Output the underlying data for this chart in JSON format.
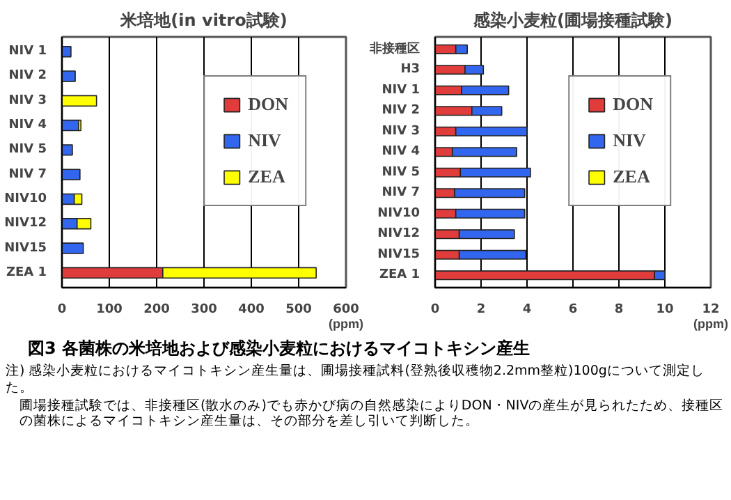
{
  "chart_data": [
    {
      "type": "bar",
      "orientation": "horizontal",
      "stacked": true,
      "title": "米培地(in vitro試験)",
      "xlabel": "(ppm)",
      "categories": [
        "NIV 1",
        "NIV 2",
        "NIV 3",
        "NIV 4",
        "NIV 5",
        "NIV 7",
        "NIV10",
        "NIV12",
        "NIV15",
        "ZEA 1"
      ],
      "series": [
        {
          "name": "DON",
          "color": "#e03c3c",
          "values": [
            null,
            null,
            null,
            null,
            null,
            null,
            null,
            null,
            null,
            213
          ]
        },
        {
          "name": "NIV",
          "color": "#3366ee",
          "values": [
            19,
            28,
            null,
            35,
            22,
            38,
            26,
            32,
            45,
            null
          ]
        },
        {
          "name": "ZEA",
          "color": "#ffff00",
          "values": [
            null,
            null,
            73,
            5,
            null,
            null,
            16,
            29,
            null,
            324
          ]
        }
      ],
      "xlim": [
        0,
        600
      ],
      "xticks": [
        0,
        100,
        200,
        300,
        400,
        500,
        600
      ],
      "grid": "x",
      "legend": "top right",
      "annotations": [
        "図3 各菌株の米培地および感染小麦粒におけるマイコトキシン産生",
        "注) 感染小麦粒におけるマイコトキシン産生量は、圃場接種試料(登熟後収穫物2.2mm整粒)100gについて測定した。",
        "圃場接種試験では、非接種区(散水のみ)でも赤かび病の自然感染によりDON・NIVの産生が見られたため、接種区の菌株によるマイコトキシン産生量は、その部分を差し引いて判断した。"
      ]
    },
    {
      "type": "bar",
      "orientation": "horizontal",
      "stacked": true,
      "title": "感染小麦粒(圃場接種試験)",
      "xlabel": "(ppm)",
      "categories": [
        "非接種区",
        "H3",
        "NIV 1",
        "NIV 2",
        "NIV 3",
        "NIV 4",
        "NIV 5",
        "NIV 7",
        "NIV10",
        "NIV12",
        "NIV15",
        "ZEA 1"
      ],
      "series": [
        {
          "name": "DON",
          "color": "#e03c3c",
          "values": [
            0.9,
            1.3,
            1.15,
            1.6,
            0.9,
            0.75,
            1.1,
            0.85,
            0.9,
            1.05,
            1.05,
            9.55
          ]
        },
        {
          "name": "NIV",
          "color": "#3366ee",
          "values": [
            0.5,
            0.8,
            2.05,
            1.3,
            3.1,
            2.8,
            3.05,
            3.05,
            3.0,
            2.4,
            2.9,
            0.45
          ]
        },
        {
          "name": "ZEA",
          "color": "#ffff00",
          "values": [
            null,
            null,
            null,
            null,
            null,
            null,
            null,
            null,
            null,
            null,
            null,
            null
          ]
        }
      ],
      "xlim": [
        0,
        12
      ],
      "xticks": [
        0,
        2,
        4,
        6,
        8,
        10,
        12
      ],
      "grid": "x",
      "legend": "top right"
    }
  ]
}
